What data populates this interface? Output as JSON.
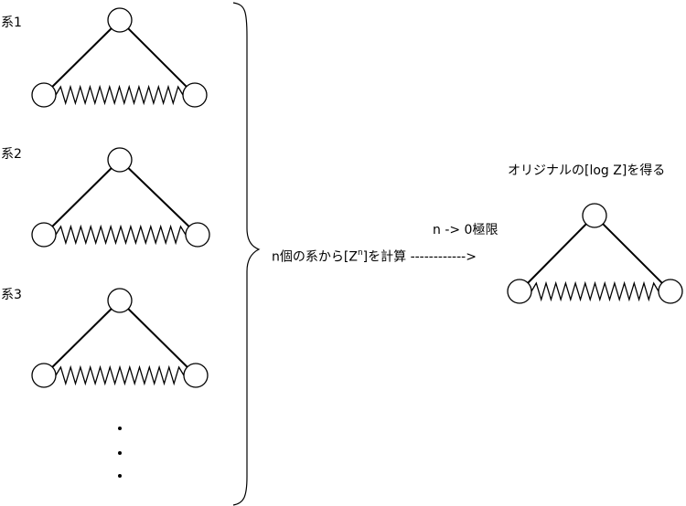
{
  "systems": [
    {
      "label": "系1"
    },
    {
      "label": "系2"
    },
    {
      "label": "系3"
    }
  ],
  "ellipsis": [
    "·",
    "·",
    "·"
  ],
  "compute_text": {
    "prefix": "n個の系から[Z",
    "superscript": "n",
    "suffix": "]を計算",
    "arrow": "------------>"
  },
  "limit_text": "n -> 0極限",
  "result_text": "オリジナルの[log Z]を得る",
  "colors": {
    "stroke": "#000000",
    "fill": "#ffffff"
  }
}
